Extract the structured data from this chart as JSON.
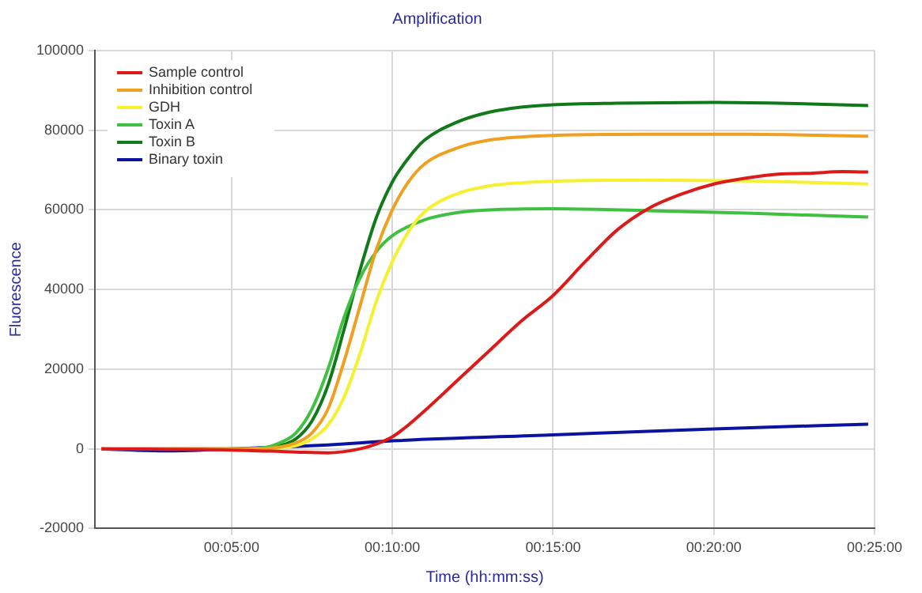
{
  "chart_data": {
    "type": "line",
    "title": "Amplification",
    "xlabel": "Time (hh:mm:ss)",
    "ylabel": "Fluorescence",
    "xlim": [
      0.75,
      25
    ],
    "xticks": [
      {
        "value": 5,
        "label": "00:05:00"
      },
      {
        "value": 10,
        "label": "00:10:00"
      },
      {
        "value": 15,
        "label": "00:15:00"
      },
      {
        "value": 20,
        "label": "00:20:00"
      },
      {
        "value": 25,
        "label": "00:25:00"
      }
    ],
    "ylim": [
      -20000,
      100000
    ],
    "yticks": [
      -20000,
      0,
      20000,
      40000,
      60000,
      80000,
      100000
    ],
    "grid": true,
    "legend": "top left",
    "marker": "none",
    "line_style": "solid",
    "series": [
      {
        "name": "Sample control",
        "color": "#dd1a1a",
        "x": [
          0.95,
          5,
          7,
          8,
          9,
          9.5,
          10,
          10.5,
          11,
          12,
          13,
          14,
          15,
          16,
          17,
          18,
          19,
          20,
          21,
          22,
          23,
          24,
          24.8
        ],
        "values": [
          0,
          -300,
          -800,
          -1000,
          0,
          1200,
          3000,
          6000,
          9500,
          17000,
          24500,
          32000,
          38500,
          47000,
          55000,
          60500,
          64000,
          66500,
          68000,
          69000,
          69200,
          69600,
          69500
        ]
      },
      {
        "name": "Inhibition control",
        "color": "#f0a020",
        "x": [
          0.95,
          5,
          6,
          7,
          7.5,
          8,
          8.5,
          9,
          9.5,
          10,
          10.5,
          11,
          12,
          13,
          15,
          18,
          21,
          24.8
        ],
        "values": [
          0,
          0,
          100,
          1500,
          4000,
          10000,
          22000,
          36000,
          50000,
          60000,
          67000,
          71500,
          75500,
          77500,
          78700,
          79000,
          79000,
          78500
        ]
      },
      {
        "name": "GDH",
        "color": "#f5f030",
        "x": [
          0.95,
          5,
          6,
          7,
          7.5,
          8,
          8.5,
          9,
          9.5,
          10,
          10.5,
          11,
          12,
          13,
          15,
          18,
          21,
          24.8
        ],
        "values": [
          0,
          0,
          0,
          800,
          2500,
          6000,
          13000,
          24000,
          37000,
          47000,
          54500,
          59500,
          64000,
          66000,
          67200,
          67500,
          67300,
          66500
        ]
      },
      {
        "name": "Toxin A",
        "color": "#40c040",
        "x": [
          0.95,
          5,
          6,
          6.5,
          7,
          7.5,
          8,
          8.5,
          9,
          9.5,
          10,
          11,
          12,
          13,
          15,
          18,
          21,
          24.8
        ],
        "values": [
          0,
          0,
          300,
          1500,
          4000,
          10000,
          20000,
          33000,
          43000,
          49500,
          53500,
          57500,
          59300,
          60000,
          60300,
          59800,
          59200,
          58200
        ]
      },
      {
        "name": "Toxin B",
        "color": "#107a18",
        "x": [
          0.95,
          5,
          6,
          6.5,
          7,
          7.5,
          8,
          8.5,
          9,
          9.5,
          10,
          10.5,
          11,
          12,
          13,
          14,
          15,
          17,
          20,
          22,
          24.8
        ],
        "values": [
          0,
          0,
          200,
          800,
          2500,
          7000,
          16000,
          30000,
          45000,
          58000,
          67000,
          73000,
          77500,
          82000,
          84500,
          85800,
          86400,
          86800,
          87000,
          86800,
          86200
        ]
      },
      {
        "name": "Binary toxin",
        "color": "#0a14a0",
        "x": [
          0.95,
          3,
          5,
          8,
          10,
          15,
          20,
          24.8
        ],
        "values": [
          0,
          -500,
          0,
          1000,
          2000,
          3500,
          5000,
          6200
        ]
      }
    ]
  }
}
